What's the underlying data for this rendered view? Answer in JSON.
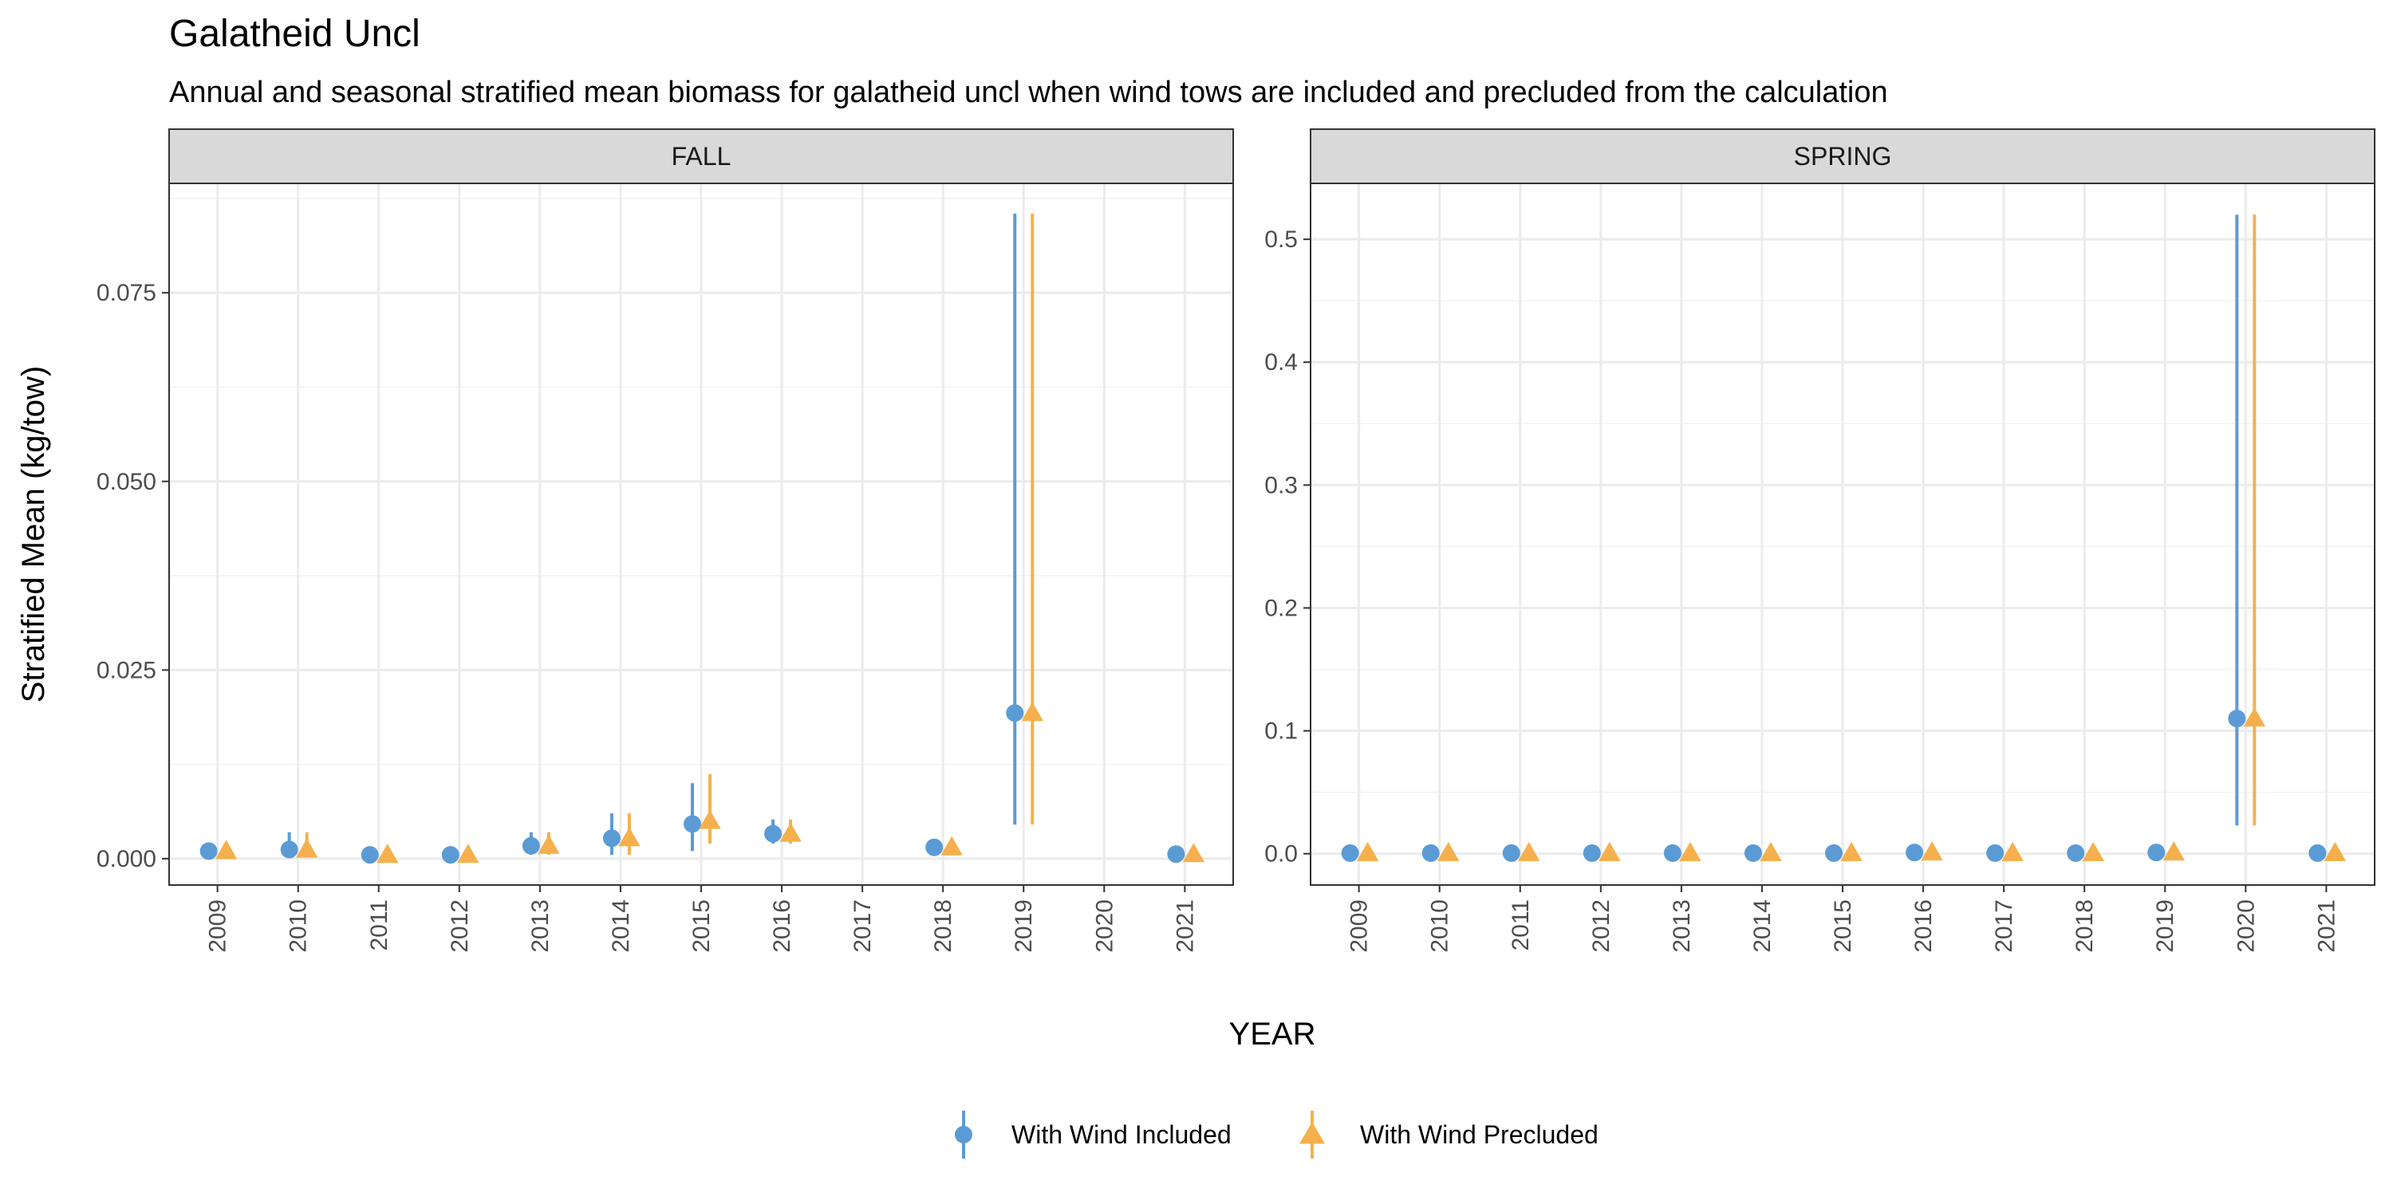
{
  "chart_data": {
    "type": "scatter",
    "title": "Galatheid Uncl",
    "subtitle": "Annual and seasonal stratified mean biomass for galatheid uncl when wind tows are included and precluded from the calculation",
    "xlabel": "YEAR",
    "ylabel": "Stratified Mean (kg/tow)",
    "grid": true,
    "legend_position": "bottom",
    "legend": [
      {
        "name": "With Wind Included",
        "color": "#5B9BD5",
        "shape": "circle"
      },
      {
        "name": "With Wind Precluded",
        "color": "#F5B04D",
        "shape": "triangle"
      }
    ],
    "panels": [
      {
        "name": "FALL",
        "categories": [
          "2009",
          "2010",
          "2011",
          "2012",
          "2013",
          "2014",
          "2015",
          "2016",
          "2017",
          "2018",
          "2019",
          "2020",
          "2021"
        ],
        "ylim": [
          -0.0035,
          0.0895
        ],
        "yticks": [
          0.0,
          0.025,
          0.05,
          0.075
        ],
        "ytick_labels": [
          "0.000",
          "0.025",
          "0.050",
          "0.075"
        ],
        "series": [
          {
            "name": "With Wind Included",
            "points": [
              {
                "x": "2009",
                "y": 0.001,
                "low": 0.0008,
                "high": 0.0012
              },
              {
                "x": "2010",
                "y": 0.0012,
                "low": 0.0002,
                "high": 0.0035
              },
              {
                "x": "2011",
                "y": 0.0005,
                "low": 0.0003,
                "high": 0.0008
              },
              {
                "x": "2012",
                "y": 0.0005,
                "low": 0.0003,
                "high": 0.0008
              },
              {
                "x": "2013",
                "y": 0.0017,
                "low": 0.0005,
                "high": 0.0035
              },
              {
                "x": "2014",
                "y": 0.0027,
                "low": 0.0005,
                "high": 0.006
              },
              {
                "x": "2015",
                "y": 0.0046,
                "low": 0.001,
                "high": 0.01
              },
              {
                "x": "2016",
                "y": 0.0033,
                "low": 0.002,
                "high": 0.0052
              },
              {
                "x": "2018",
                "y": 0.0015,
                "low": 0.0012,
                "high": 0.0018
              },
              {
                "x": "2019",
                "y": 0.0193,
                "low": 0.0045,
                "high": 0.0855
              },
              {
                "x": "2021",
                "y": 0.0006,
                "low": 0.0004,
                "high": 0.0008
              }
            ]
          },
          {
            "name": "With Wind Precluded",
            "points": [
              {
                "x": "2009",
                "y": 0.001,
                "low": 0.0008,
                "high": 0.0012
              },
              {
                "x": "2010",
                "y": 0.0012,
                "low": 0.0002,
                "high": 0.0035
              },
              {
                "x": "2011",
                "y": 0.0005,
                "low": 0.0003,
                "high": 0.0008
              },
              {
                "x": "2012",
                "y": 0.0005,
                "low": 0.0003,
                "high": 0.0008
              },
              {
                "x": "2013",
                "y": 0.0017,
                "low": 0.0005,
                "high": 0.0035
              },
              {
                "x": "2014",
                "y": 0.0027,
                "low": 0.0005,
                "high": 0.006
              },
              {
                "x": "2015",
                "y": 0.005,
                "low": 0.002,
                "high": 0.0112
              },
              {
                "x": "2016",
                "y": 0.0033,
                "low": 0.002,
                "high": 0.0052
              },
              {
                "x": "2018",
                "y": 0.0015,
                "low": 0.0012,
                "high": 0.0018
              },
              {
                "x": "2019",
                "y": 0.0193,
                "low": 0.0045,
                "high": 0.0855
              },
              {
                "x": "2021",
                "y": 0.0006,
                "low": 0.0004,
                "high": 0.0008
              }
            ]
          }
        ]
      },
      {
        "name": "SPRING",
        "categories": [
          "2009",
          "2010",
          "2011",
          "2012",
          "2013",
          "2014",
          "2015",
          "2016",
          "2017",
          "2018",
          "2019",
          "2020",
          "2021"
        ],
        "ylim": [
          -0.0255,
          0.5455
        ],
        "yticks": [
          0.0,
          0.1,
          0.2,
          0.3,
          0.4,
          0.5
        ],
        "ytick_labels": [
          "0.0",
          "0.1",
          "0.2",
          "0.3",
          "0.4",
          "0.5"
        ],
        "series": [
          {
            "name": "With Wind Included",
            "points": [
              {
                "x": "2009",
                "y": 0.0005,
                "low": 0.0,
                "high": 0.001
              },
              {
                "x": "2010",
                "y": 0.0005,
                "low": 0.0,
                "high": 0.001
              },
              {
                "x": "2011",
                "y": 0.0005,
                "low": 0.0,
                "high": 0.001
              },
              {
                "x": "2012",
                "y": 0.0005,
                "low": 0.0,
                "high": 0.001
              },
              {
                "x": "2013",
                "y": 0.0005,
                "low": 0.0,
                "high": 0.001
              },
              {
                "x": "2014",
                "y": 0.0005,
                "low": 0.0,
                "high": 0.001
              },
              {
                "x": "2015",
                "y": 0.0005,
                "low": 0.0,
                "high": 0.001
              },
              {
                "x": "2016",
                "y": 0.001,
                "low": 0.0,
                "high": 0.002
              },
              {
                "x": "2017",
                "y": 0.0005,
                "low": 0.0,
                "high": 0.001
              },
              {
                "x": "2018",
                "y": 0.0005,
                "low": 0.0,
                "high": 0.001
              },
              {
                "x": "2019",
                "y": 0.001,
                "low": 0.0,
                "high": 0.002
              },
              {
                "x": "2020",
                "y": 0.11,
                "low": 0.023,
                "high": 0.52
              },
              {
                "x": "2021",
                "y": 0.0005,
                "low": 0.0,
                "high": 0.001
              }
            ]
          },
          {
            "name": "With Wind Precluded",
            "points": [
              {
                "x": "2009",
                "y": 0.0005,
                "low": 0.0,
                "high": 0.001
              },
              {
                "x": "2010",
                "y": 0.0005,
                "low": 0.0,
                "high": 0.001
              },
              {
                "x": "2011",
                "y": 0.0005,
                "low": 0.0,
                "high": 0.001
              },
              {
                "x": "2012",
                "y": 0.0005,
                "low": 0.0,
                "high": 0.001
              },
              {
                "x": "2013",
                "y": 0.0005,
                "low": 0.0,
                "high": 0.001
              },
              {
                "x": "2014",
                "y": 0.0005,
                "low": 0.0,
                "high": 0.001
              },
              {
                "x": "2015",
                "y": 0.0005,
                "low": 0.0,
                "high": 0.001
              },
              {
                "x": "2016",
                "y": 0.001,
                "low": 0.0,
                "high": 0.002
              },
              {
                "x": "2017",
                "y": 0.0005,
                "low": 0.0,
                "high": 0.001
              },
              {
                "x": "2018",
                "y": 0.0005,
                "low": 0.0,
                "high": 0.001
              },
              {
                "x": "2019",
                "y": 0.001,
                "low": 0.0,
                "high": 0.002
              },
              {
                "x": "2020",
                "y": 0.11,
                "low": 0.023,
                "high": 0.52
              },
              {
                "x": "2021",
                "y": 0.0005,
                "low": 0.0,
                "high": 0.001
              }
            ]
          }
        ]
      }
    ]
  }
}
